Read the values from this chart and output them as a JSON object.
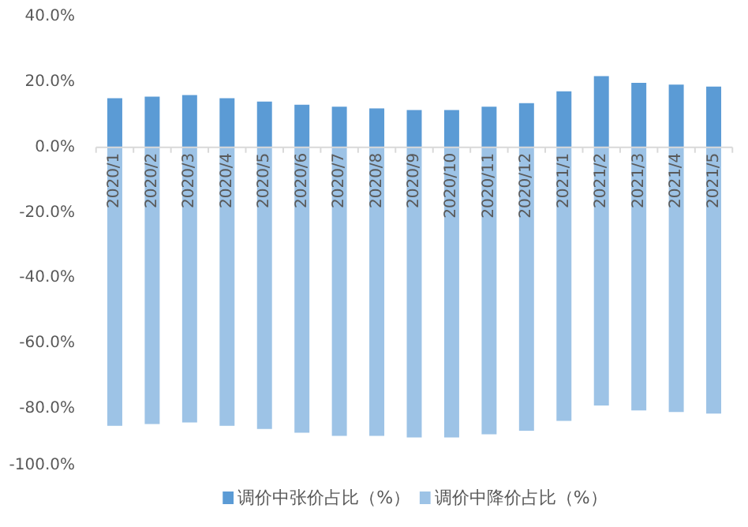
{
  "chart_data": {
    "type": "bar",
    "categories": [
      "2020/1",
      "2020/2",
      "2020/3",
      "2020/4",
      "2020/5",
      "2020/6",
      "2020/7",
      "2020/8",
      "2020/9",
      "2020/10",
      "2020/11",
      "2020/12",
      "2021/1",
      "2021/2",
      "2021/3",
      "2021/4",
      "2021/5"
    ],
    "series": [
      {
        "name": "调价中张价占比（%）",
        "color": "#5b9bd5",
        "values": [
          15.0,
          15.5,
          16.0,
          15.0,
          14.0,
          13.0,
          12.4,
          11.9,
          11.4,
          11.4,
          12.4,
          13.5,
          17.1,
          21.8,
          19.7,
          19.2,
          18.6
        ]
      },
      {
        "name": "调价中降价占比（%）",
        "color": "#9dc3e6",
        "values": [
          -85.2,
          -84.7,
          -84.2,
          -85.2,
          -86.2,
          -87.3,
          -88.3,
          -88.3,
          -88.8,
          -88.8,
          -87.8,
          -86.7,
          -83.7,
          -79.0,
          -80.5,
          -81.0,
          -81.5
        ]
      }
    ],
    "ylim": [
      -100,
      40
    ],
    "yticks": [
      {
        "value": -100,
        "label": "-100.0%"
      },
      {
        "value": -80,
        "label": "-80.0%"
      },
      {
        "value": -60,
        "label": "-60.0%"
      },
      {
        "value": -40,
        "label": "-40.0%"
      },
      {
        "value": -20,
        "label": "-20.0%"
      },
      {
        "value": 0,
        "label": "0.0%"
      },
      {
        "value": 20,
        "label": "20.0%"
      },
      {
        "value": 40,
        "label": "40.0%"
      }
    ],
    "grid": false,
    "legend": "bottom",
    "stacked": true
  }
}
